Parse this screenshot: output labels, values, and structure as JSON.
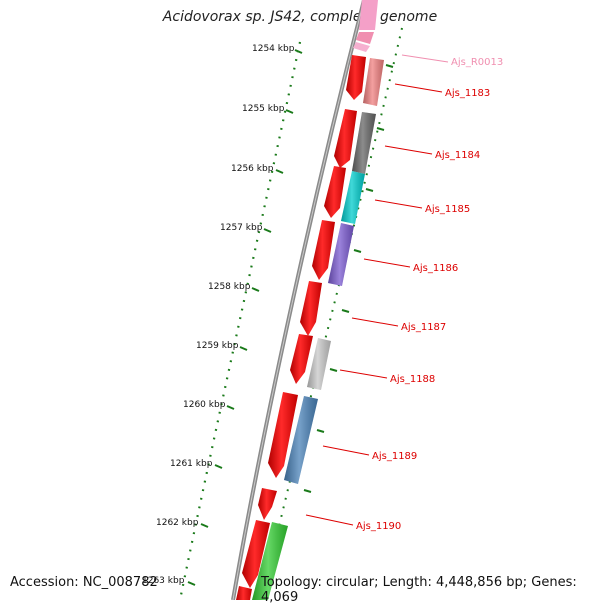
{
  "title": "Acidovorax sp. JS42, complete genome",
  "footer": {
    "accession": "Accession: NC_008782",
    "summary": "Topology: circular; Length: 4,448,856 bp; Genes: 4,069"
  },
  "colors": {
    "backbone": "#8a8a8a",
    "ruler": "#1a7a1a",
    "cds_forward": "#ff0000",
    "label_red": "#dd0000",
    "label_pink": "#f08fb0"
  },
  "ruler_labels": [
    "1254 kbp",
    "1255 kbp",
    "1256 kbp",
    "1257 kbp",
    "1258 kbp",
    "1259 kbp",
    "1260 kbp",
    "1261 kbp",
    "1262 kbp",
    "1263 kbp"
  ],
  "gene_labels": [
    {
      "name": "Ajs_R0013",
      "color": "#f08fb0"
    },
    {
      "name": "Ajs_1183",
      "color": "#dd0000"
    },
    {
      "name": "Ajs_1184",
      "color": "#dd0000"
    },
    {
      "name": "Ajs_1185",
      "color": "#dd0000"
    },
    {
      "name": "Ajs_1186",
      "color": "#dd0000"
    },
    {
      "name": "Ajs_1187",
      "color": "#dd0000"
    },
    {
      "name": "Ajs_1188",
      "color": "#dd0000"
    },
    {
      "name": "Ajs_1189",
      "color": "#dd0000"
    },
    {
      "name": "Ajs_1190",
      "color": "#dd0000"
    }
  ],
  "cog_features": [
    {
      "gene": "Ajs_1183",
      "color": "#f08080"
    },
    {
      "gene": "Ajs_1184",
      "color": "#666666"
    },
    {
      "gene": "Ajs_1185",
      "color": "#00cccc"
    },
    {
      "gene": "Ajs_1186",
      "color": "#7a5ad0"
    },
    {
      "gene": "Ajs_1188",
      "color": "#c8c8c8"
    },
    {
      "gene": "Ajs_1189",
      "color": "#4a82b8"
    },
    {
      "gene": "",
      "color": "#33cc33"
    }
  ]
}
